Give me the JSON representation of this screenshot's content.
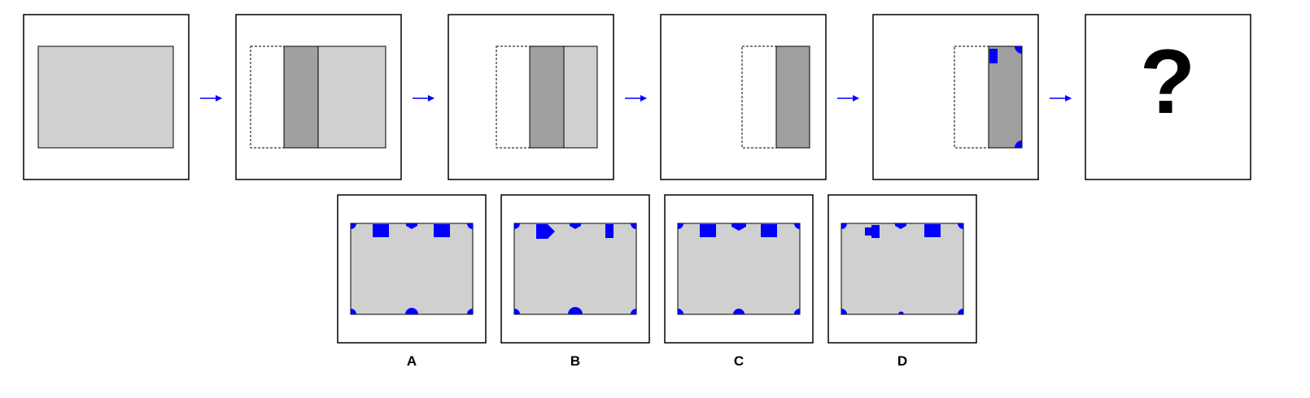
{
  "puzzle": {
    "question_mark": "?",
    "sequence_count": 6,
    "options": [
      {
        "label": "A"
      },
      {
        "label": "B"
      },
      {
        "label": "C"
      },
      {
        "label": "D"
      }
    ]
  },
  "colors": {
    "light_gray": "#d0d0d0",
    "dark_gray": "#a0a0a0",
    "accent_blue": "#0000ff",
    "border": "#000000"
  }
}
